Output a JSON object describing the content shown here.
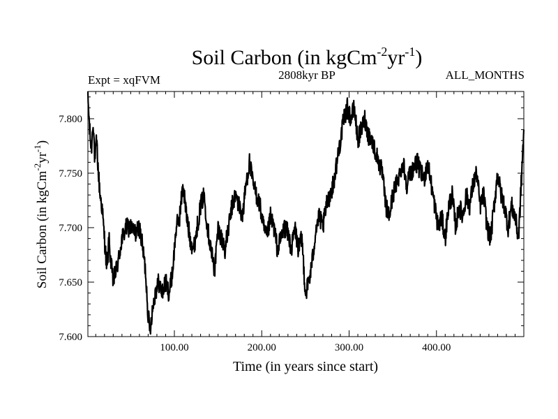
{
  "chart_data": {
    "type": "line",
    "title_main": "Soil Carbon (in kgCm",
    "title_sup1": "-2",
    "title_mid": "yr",
    "title_sup2": "-1",
    "title_end": ")",
    "subtitle_left": "Expt = xqFVM",
    "subtitle_center": "2808kyr BP",
    "subtitle_right": "ALL_MONTHS",
    "xlabel": "Time (in years since start)",
    "ylabel_main": "Soil Carbon (in kgCm",
    "ylabel_sup1": "-2",
    "ylabel_mid": "yr",
    "ylabel_sup2": "-1",
    "ylabel_end": ")",
    "xlim": [
      1,
      500
    ],
    "ylim": [
      7.6,
      7.825
    ],
    "xticks": [
      100,
      200,
      300,
      400
    ],
    "xtick_labels": [
      "100.00",
      "200.00",
      "300.00",
      "400.00"
    ],
    "yticks": [
      7.6,
      7.65,
      7.7,
      7.75,
      7.8
    ],
    "ytick_labels": [
      "7.600",
      "7.650",
      "7.700",
      "7.750",
      "7.800"
    ],
    "line_color": "#000000",
    "x": [
      1,
      3,
      5,
      7,
      9,
      11,
      13,
      15,
      17,
      19,
      21,
      23,
      25,
      27,
      30,
      33,
      36,
      40,
      45,
      50,
      55,
      60,
      64,
      67,
      70,
      72,
      74,
      78,
      82,
      86,
      90,
      94,
      98,
      102,
      106,
      110,
      114,
      118,
      122,
      126,
      130,
      134,
      138,
      142,
      146,
      150,
      154,
      158,
      162,
      166,
      170,
      174,
      178,
      182,
      186,
      190,
      194,
      198,
      202,
      206,
      210,
      214,
      218,
      222,
      226,
      230,
      234,
      238,
      242,
      246,
      250,
      254,
      258,
      262,
      266,
      270,
      274,
      278,
      282,
      286,
      290,
      294,
      298,
      302,
      306,
      310,
      314,
      318,
      322,
      326,
      330,
      334,
      338,
      342,
      346,
      350,
      354,
      358,
      362,
      366,
      370,
      374,
      378,
      382,
      386,
      390,
      394,
      398,
      402,
      406,
      410,
      414,
      418,
      422,
      426,
      430,
      434,
      438,
      442,
      446,
      450,
      454,
      458,
      462,
      466,
      470,
      474,
      478,
      482,
      486,
      490,
      494,
      497,
      500
    ],
    "y": [
      7.82,
      7.79,
      7.77,
      7.8,
      7.76,
      7.78,
      7.75,
      7.73,
      7.72,
      7.7,
      7.68,
      7.66,
      7.69,
      7.67,
      7.65,
      7.66,
      7.67,
      7.69,
      7.7,
      7.7,
      7.695,
      7.7,
      7.68,
      7.66,
      7.62,
      7.605,
      7.62,
      7.64,
      7.65,
      7.64,
      7.65,
      7.64,
      7.66,
      7.7,
      7.71,
      7.74,
      7.71,
      7.69,
      7.68,
      7.7,
      7.72,
      7.73,
      7.7,
      7.68,
      7.66,
      7.7,
      7.69,
      7.68,
      7.7,
      7.72,
      7.73,
      7.72,
      7.71,
      7.74,
      7.76,
      7.74,
      7.73,
      7.72,
      7.7,
      7.69,
      7.71,
      7.7,
      7.68,
      7.69,
      7.7,
      7.695,
      7.68,
      7.7,
      7.68,
      7.69,
      7.64,
      7.65,
      7.67,
      7.7,
      7.71,
      7.7,
      7.72,
      7.73,
      7.74,
      7.76,
      7.78,
      7.8,
      7.81,
      7.8,
      7.81,
      7.78,
      7.79,
      7.8,
      7.785,
      7.78,
      7.77,
      7.76,
      7.75,
      7.72,
      7.71,
      7.73,
      7.74,
      7.75,
      7.76,
      7.74,
      7.75,
      7.755,
      7.76,
      7.75,
      7.745,
      7.76,
      7.74,
      7.72,
      7.7,
      7.71,
      7.69,
      7.72,
      7.73,
      7.7,
      7.72,
      7.71,
      7.73,
      7.72,
      7.74,
      7.75,
      7.72,
      7.73,
      7.7,
      7.69,
      7.72,
      7.75,
      7.73,
      7.72,
      7.7,
      7.72,
      7.71,
      7.69,
      7.74,
      7.79
    ]
  }
}
